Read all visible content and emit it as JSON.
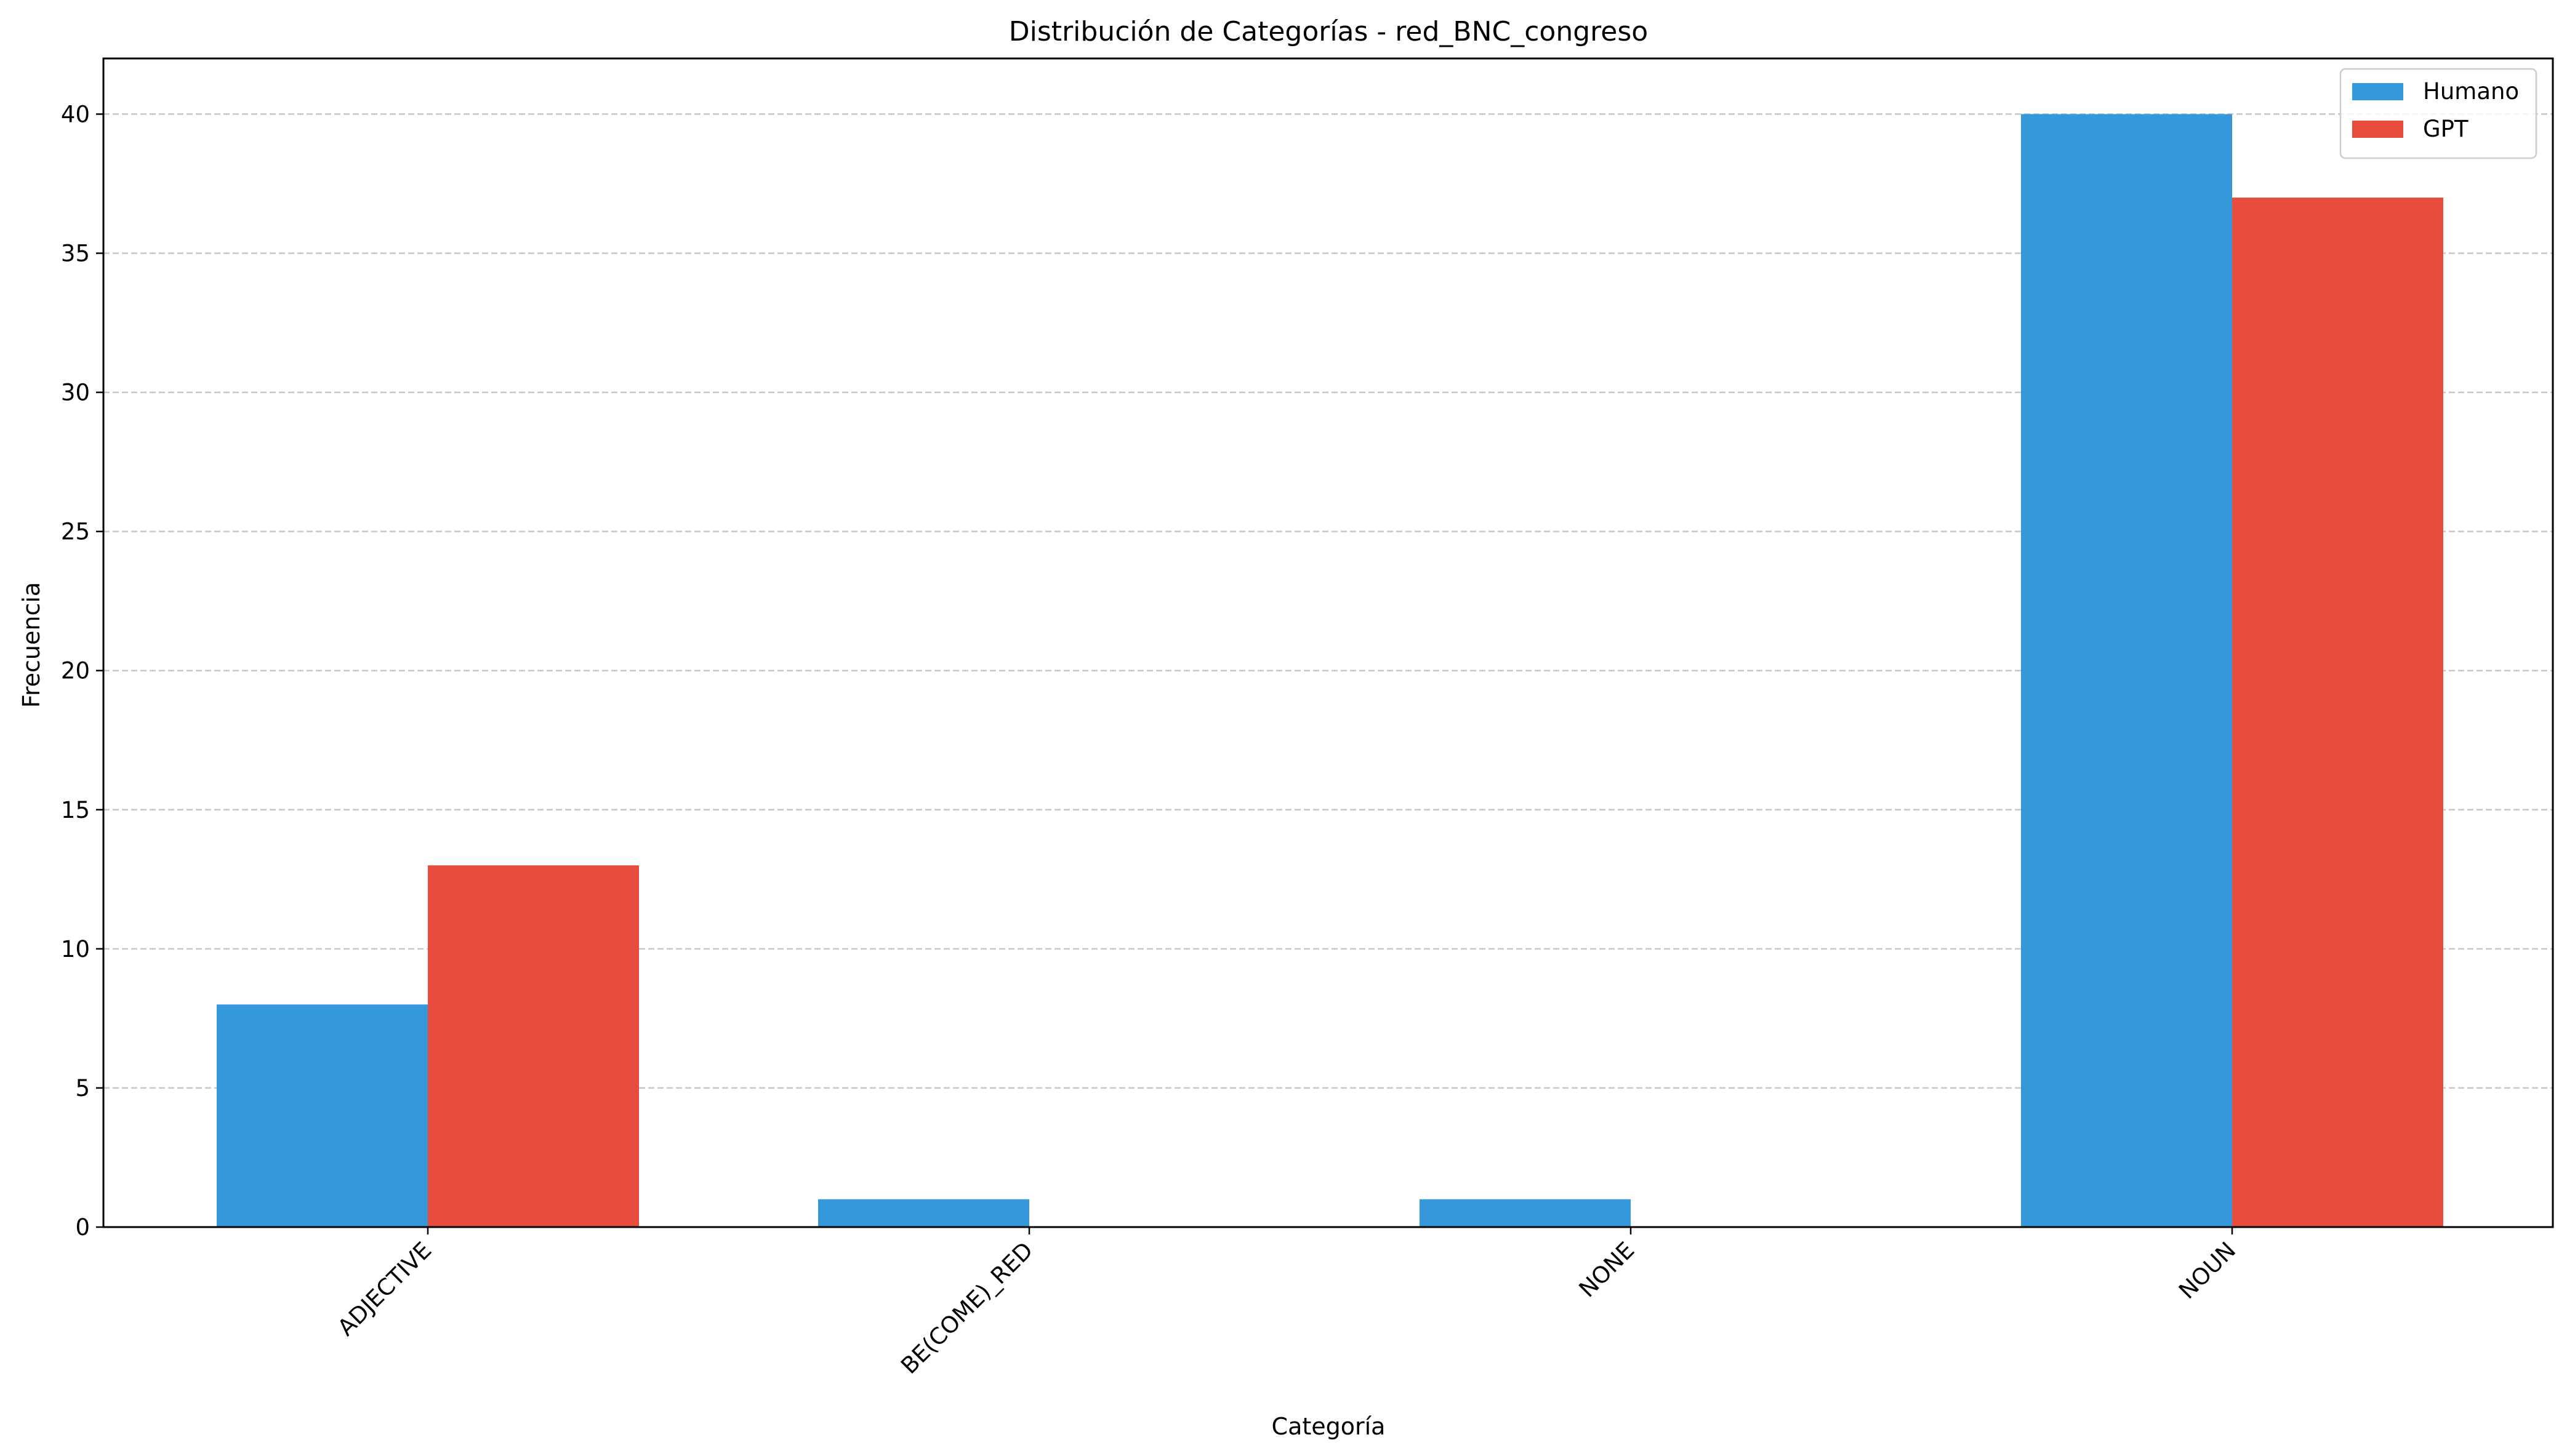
{
  "chart_data": {
    "type": "bar",
    "title": "Distribución de Categorías - red_BNC_congreso",
    "xlabel": "Categoría",
    "ylabel": "Frecuencia",
    "categories": [
      "ADJECTIVE",
      "BE(COME)_RED",
      "NONE",
      "NOUN"
    ],
    "series": [
      {
        "name": "Humano",
        "values": [
          8,
          1,
          1,
          40
        ],
        "color": "#3498db"
      },
      {
        "name": "GPT",
        "values": [
          13,
          0,
          0,
          37
        ],
        "color": "#e74c3c"
      }
    ],
    "ylim": [
      0,
      42
    ],
    "yticks": [
      0,
      5,
      10,
      15,
      20,
      25,
      30,
      35,
      40
    ],
    "grid": "y-dashed",
    "legend_position": "top-right"
  }
}
